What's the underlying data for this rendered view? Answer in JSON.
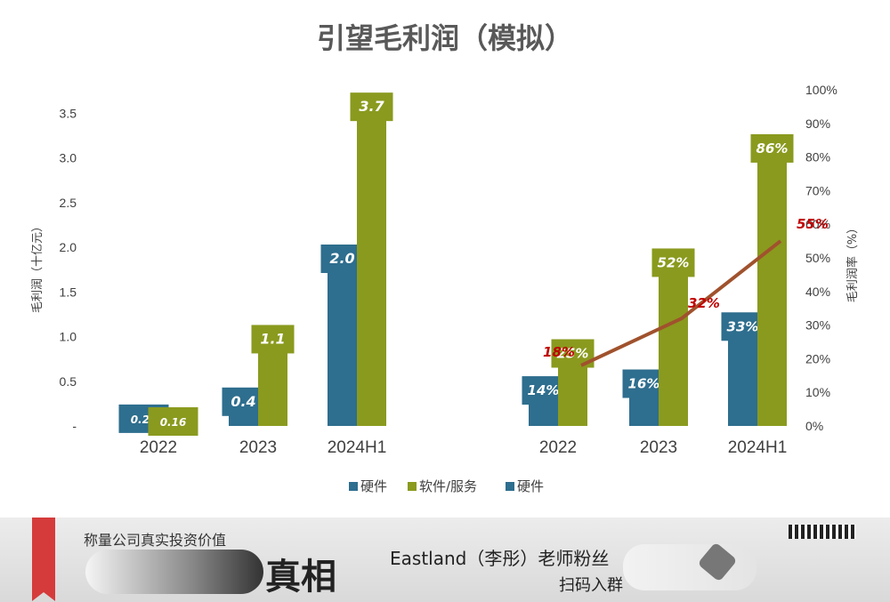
{
  "chart_data": [
    {
      "type": "bar",
      "title": "引望毛利润（模拟）",
      "ylabel": "毛利润（十亿元）",
      "ylim": [
        0,
        3.8
      ],
      "yticks": [
        "-",
        "0.5",
        "1.0",
        "1.5",
        "2.0",
        "2.5",
        "3.0",
        "3.5"
      ],
      "categories": [
        "2022",
        "2023",
        "2024H1"
      ],
      "series": [
        {
          "name": "硬件",
          "color": "#2e6e8e",
          "values": [
            0.21,
            0.4,
            2.0
          ],
          "labels": [
            "0.21",
            "0.4",
            "2.0"
          ]
        },
        {
          "name": "软件/服务",
          "color": "#8a9a1e",
          "values": [
            0.16,
            1.1,
            3.7
          ],
          "labels": [
            "0.16",
            "1.1",
            "3.7"
          ]
        }
      ]
    },
    {
      "type": "bar",
      "ylabel": "毛利润率（%）",
      "ylim": [
        0,
        100
      ],
      "yticks": [
        "0%",
        "10%",
        "20%",
        "30%",
        "40%",
        "50%",
        "60%",
        "70%",
        "80%",
        "90%",
        "100%"
      ],
      "categories": [
        "2022",
        "2023",
        "2024H1"
      ],
      "series": [
        {
          "name": "硬件",
          "color": "#2e6e8e",
          "values": [
            14,
            16,
            33
          ],
          "labels": [
            "14%",
            "16%",
            "33%"
          ]
        },
        {
          "name": "软件/服务",
          "color": "#8a9a1e",
          "values": [
            25,
            52,
            86
          ],
          "labels": [
            "25%",
            "52%",
            "86%"
          ]
        },
        {
          "name": "硬件",
          "type": "line",
          "color": "#a0522d",
          "values": [
            18,
            32,
            55
          ],
          "labels": [
            "18%",
            "32%",
            "55%"
          ]
        }
      ]
    }
  ],
  "legend": [
    "硬件",
    "软件/服务",
    "硬件"
  ],
  "banner": {
    "top_text": "称量公司真实投资价值",
    "big_text": "真相",
    "mid_text": "Eastland（李彤）老师粉丝",
    "bottom_text": "扫码入群"
  }
}
